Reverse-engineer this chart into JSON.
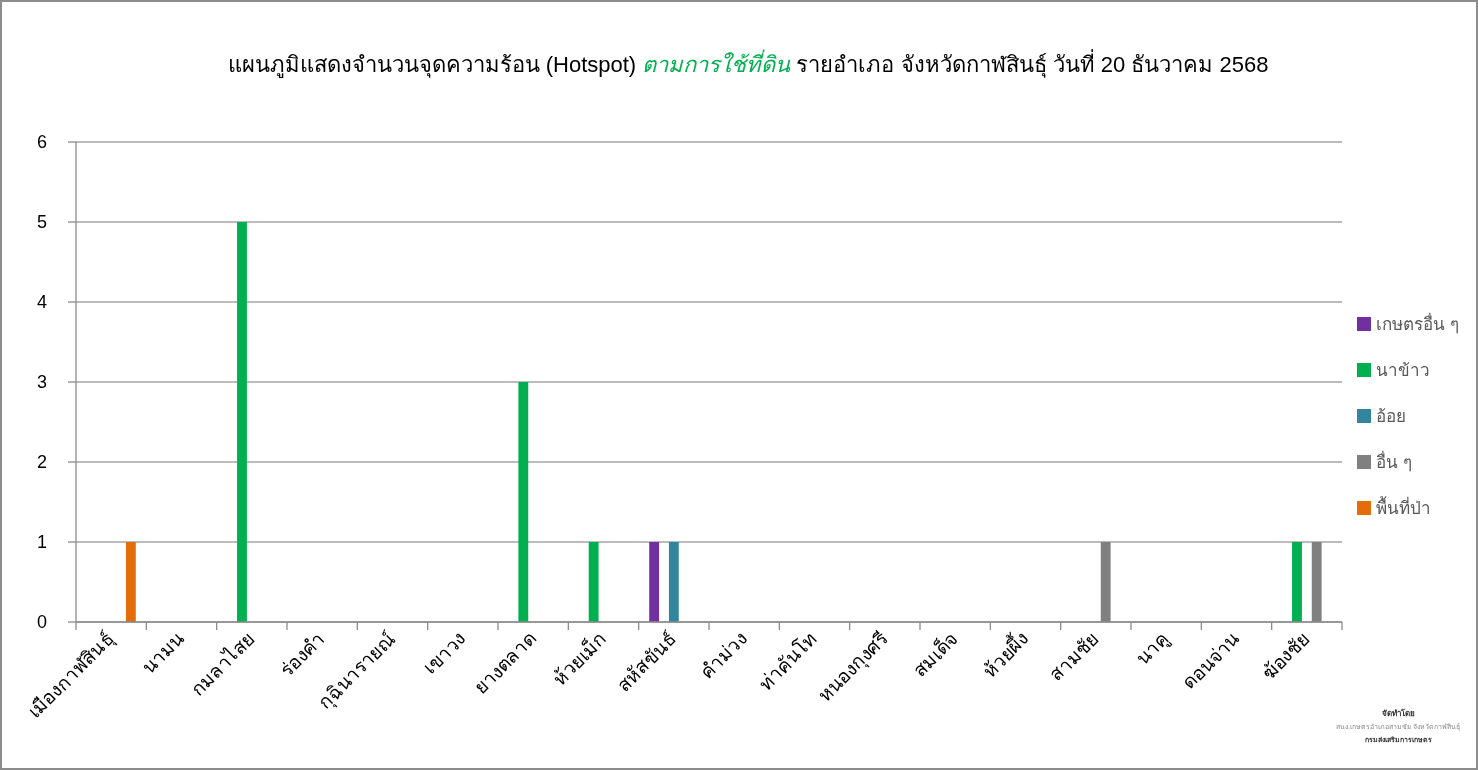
{
  "chart_data": {
    "type": "bar",
    "title": "แผนภูมิแสดงจำนวนจุดความร้อน (Hotspot) *ตามการใช้ที่ดิน* รายอำเภอ จังหวัดกาฬสินธุ์ วันที่ 20 ธันวาคม 2568",
    "categories": [
      "เมืองกาฬสินธุ์",
      "นามน",
      "กมลาไสย",
      "ร่องคำ",
      "กุฉินารายณ์",
      "เขาวง",
      "ยางตลาด",
      "ห้วยเม็ก",
      "สหัสขันธ์",
      "คำม่วง",
      "ท่าคันโท",
      "หนองกุงศรี",
      "สมเด็จ",
      "ห้วยผึ้ง",
      "สามชัย",
      "นาคู",
      "ดอนจ่าน",
      "ฆ้องชัย"
    ],
    "series": [
      {
        "name": "เกษตรอื่น ๆ",
        "color": "#7030a0",
        "values": [
          0,
          0,
          0,
          0,
          0,
          0,
          0,
          0,
          1,
          0,
          0,
          0,
          0,
          0,
          0,
          0,
          0,
          0
        ]
      },
      {
        "name": "นาข้าว",
        "color": "#00b050",
        "values": [
          0,
          0,
          5,
          0,
          0,
          0,
          3,
          1,
          0,
          0,
          0,
          0,
          0,
          0,
          0,
          0,
          0,
          1
        ]
      },
      {
        "name": "อ้อย",
        "color": "#31859c",
        "values": [
          0,
          0,
          0,
          0,
          0,
          0,
          0,
          0,
          1,
          0,
          0,
          0,
          0,
          0,
          0,
          0,
          0,
          0
        ]
      },
      {
        "name": "อื่น ๆ",
        "color": "#808080",
        "values": [
          0,
          0,
          0,
          0,
          0,
          0,
          0,
          0,
          0,
          0,
          0,
          0,
          0,
          0,
          1,
          0,
          0,
          1
        ]
      },
      {
        "name": "พื้นที่ป่า",
        "color": "#e46c0a",
        "values": [
          1,
          0,
          0,
          0,
          0,
          0,
          0,
          0,
          0,
          0,
          0,
          0,
          0,
          0,
          0,
          0,
          0,
          0
        ]
      }
    ],
    "ylim": [
      0,
      6
    ],
    "yticks": [
      0,
      1,
      2,
      3,
      4,
      5,
      6
    ],
    "grid": "y",
    "legend": "right",
    "annotations": [
      "จัดทำโดย",
      "สนง.เกษตรอำเภอสามชัย จังหวัดกาฬสินธุ์",
      "กรมส่งเสริมการเกษตร"
    ]
  }
}
